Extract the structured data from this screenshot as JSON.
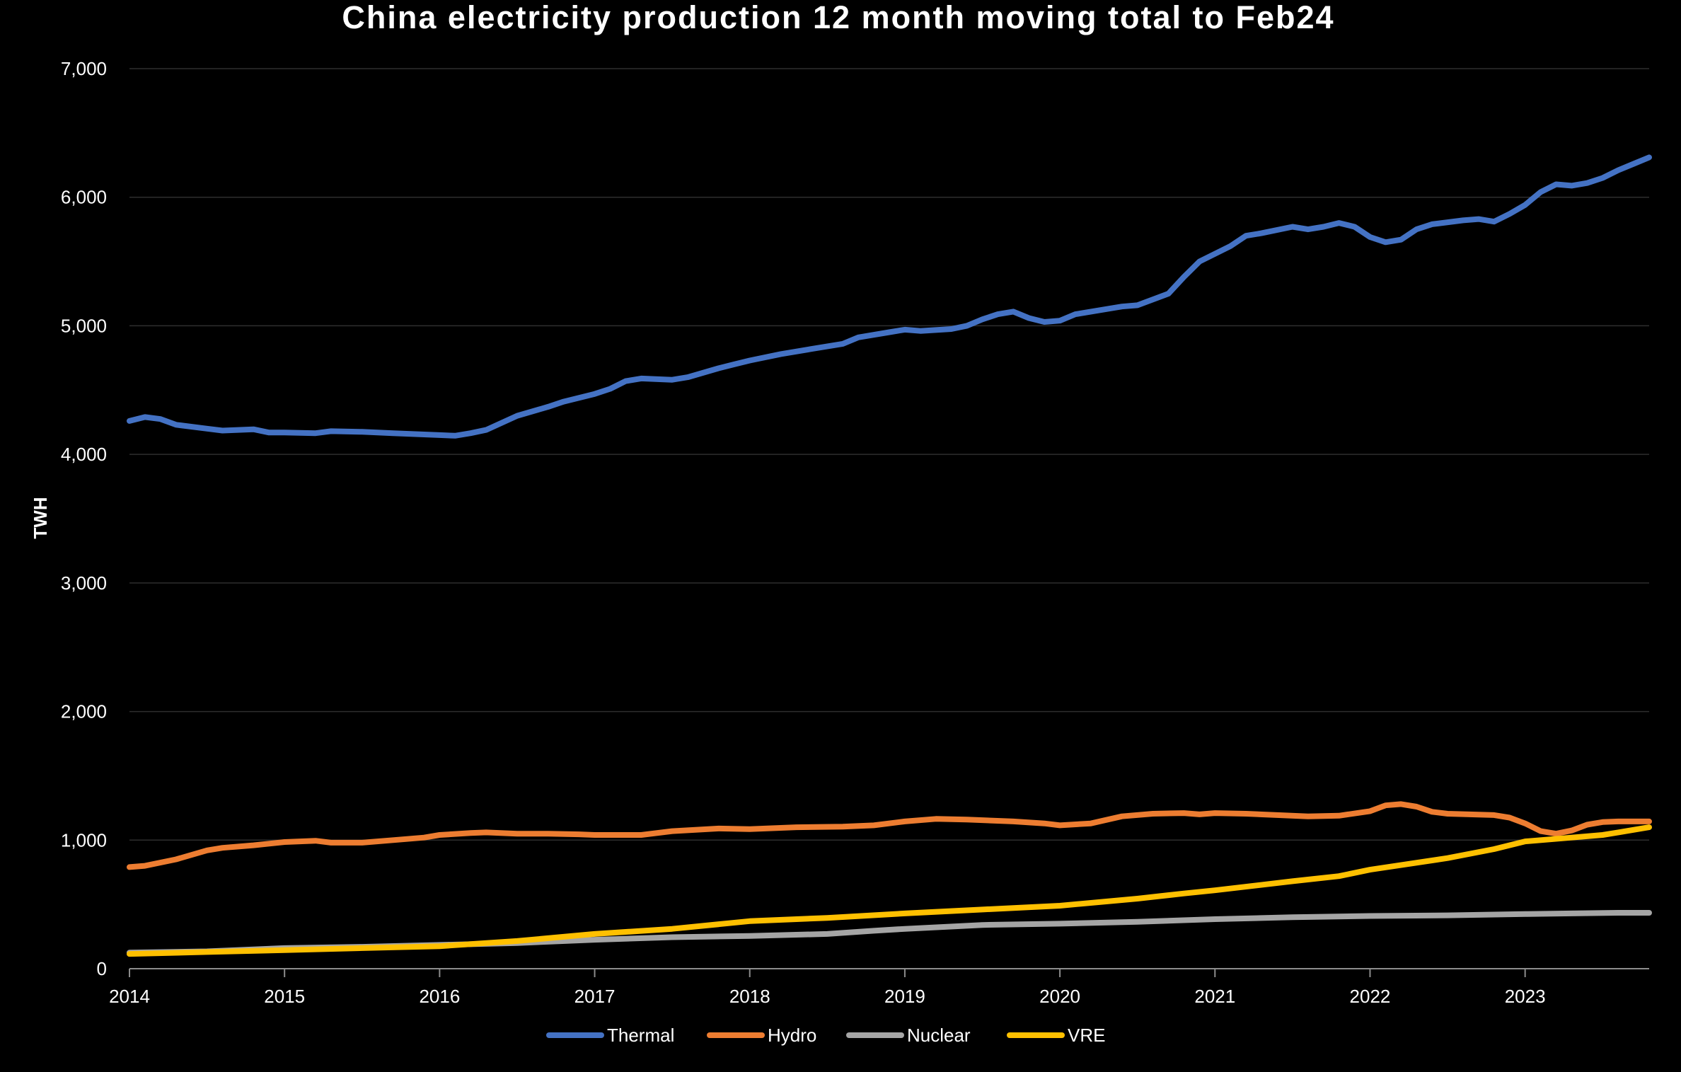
{
  "colors": {
    "background": "#000000",
    "text": "#ffffff",
    "gridline": "#2e2e2e",
    "axis": "#8c8c8c"
  },
  "chart_data": {
    "type": "line",
    "title": "China electricity production 12 month moving total to Feb24",
    "ylabel": "TWH",
    "xlabel": "",
    "xlim": [
      2014,
      2023.8
    ],
    "ylim": [
      0,
      7000
    ],
    "x_ticks": [
      {
        "value": 2014,
        "label": "2014"
      },
      {
        "value": 2015,
        "label": "2015"
      },
      {
        "value": 2016,
        "label": "2016"
      },
      {
        "value": 2017,
        "label": "2017"
      },
      {
        "value": 2018,
        "label": "2018"
      },
      {
        "value": 2019,
        "label": "2019"
      },
      {
        "value": 2020,
        "label": "2020"
      },
      {
        "value": 2021,
        "label": "2021"
      },
      {
        "value": 2022,
        "label": "2022"
      },
      {
        "value": 2023,
        "label": "2023"
      }
    ],
    "y_ticks": [
      {
        "value": 0,
        "label": "0"
      },
      {
        "value": 1000,
        "label": "1,000"
      },
      {
        "value": 2000,
        "label": "2,000"
      },
      {
        "value": 3000,
        "label": "3,000"
      },
      {
        "value": 4000,
        "label": "4,000"
      },
      {
        "value": 5000,
        "label": "5,000"
      },
      {
        "value": 6000,
        "label": "6,000"
      },
      {
        "value": 7000,
        "label": "7,000"
      }
    ],
    "grid": true,
    "legend_position": "bottom",
    "series": [
      {
        "name": "Thermal",
        "color": "#4472C4",
        "points": [
          [
            2014.0,
            4260
          ],
          [
            2014.1,
            4290
          ],
          [
            2014.2,
            4275
          ],
          [
            2014.3,
            4230
          ],
          [
            2014.5,
            4200
          ],
          [
            2014.6,
            4185
          ],
          [
            2014.8,
            4195
          ],
          [
            2014.9,
            4170
          ],
          [
            2015.0,
            4170
          ],
          [
            2015.2,
            4165
          ],
          [
            2015.3,
            4180
          ],
          [
            2015.5,
            4175
          ],
          [
            2015.7,
            4165
          ],
          [
            2015.8,
            4160
          ],
          [
            2016.0,
            4150
          ],
          [
            2016.1,
            4145
          ],
          [
            2016.2,
            4165
          ],
          [
            2016.3,
            4190
          ],
          [
            2016.5,
            4300
          ],
          [
            2016.7,
            4370
          ],
          [
            2016.8,
            4410
          ],
          [
            2017.0,
            4470
          ],
          [
            2017.1,
            4510
          ],
          [
            2017.2,
            4570
          ],
          [
            2017.3,
            4590
          ],
          [
            2017.5,
            4580
          ],
          [
            2017.6,
            4600
          ],
          [
            2017.8,
            4670
          ],
          [
            2017.9,
            4700
          ],
          [
            2018.0,
            4730
          ],
          [
            2018.2,
            4780
          ],
          [
            2018.4,
            4820
          ],
          [
            2018.6,
            4860
          ],
          [
            2018.7,
            4910
          ],
          [
            2018.9,
            4950
          ],
          [
            2019.0,
            4970
          ],
          [
            2019.1,
            4960
          ],
          [
            2019.3,
            4975
          ],
          [
            2019.4,
            5000
          ],
          [
            2019.5,
            5050
          ],
          [
            2019.6,
            5090
          ],
          [
            2019.7,
            5110
          ],
          [
            2019.8,
            5060
          ],
          [
            2019.9,
            5030
          ],
          [
            2020.0,
            5040
          ],
          [
            2020.1,
            5090
          ],
          [
            2020.3,
            5130
          ],
          [
            2020.4,
            5150
          ],
          [
            2020.5,
            5160
          ],
          [
            2020.7,
            5250
          ],
          [
            2020.8,
            5380
          ],
          [
            2020.9,
            5500
          ],
          [
            2021.0,
            5560
          ],
          [
            2021.1,
            5620
          ],
          [
            2021.2,
            5700
          ],
          [
            2021.3,
            5720
          ],
          [
            2021.5,
            5770
          ],
          [
            2021.6,
            5750
          ],
          [
            2021.7,
            5770
          ],
          [
            2021.8,
            5800
          ],
          [
            2021.9,
            5770
          ],
          [
            2022.0,
            5690
          ],
          [
            2022.1,
            5650
          ],
          [
            2022.2,
            5670
          ],
          [
            2022.3,
            5750
          ],
          [
            2022.4,
            5790
          ],
          [
            2022.6,
            5820
          ],
          [
            2022.7,
            5830
          ],
          [
            2022.8,
            5810
          ],
          [
            2022.9,
            5870
          ],
          [
            2023.0,
            5940
          ],
          [
            2023.1,
            6040
          ],
          [
            2023.2,
            6100
          ],
          [
            2023.3,
            6090
          ],
          [
            2023.4,
            6110
          ],
          [
            2023.5,
            6150
          ],
          [
            2023.6,
            6210
          ],
          [
            2023.7,
            6260
          ],
          [
            2023.8,
            6310
          ]
        ]
      },
      {
        "name": "Hydro",
        "color": "#ED7D31",
        "points": [
          [
            2014.0,
            790
          ],
          [
            2014.1,
            800
          ],
          [
            2014.3,
            850
          ],
          [
            2014.5,
            920
          ],
          [
            2014.6,
            940
          ],
          [
            2014.8,
            960
          ],
          [
            2015.0,
            985
          ],
          [
            2015.2,
            995
          ],
          [
            2015.3,
            980
          ],
          [
            2015.5,
            980
          ],
          [
            2015.7,
            1000
          ],
          [
            2015.9,
            1020
          ],
          [
            2016.0,
            1040
          ],
          [
            2016.2,
            1055
          ],
          [
            2016.3,
            1060
          ],
          [
            2016.5,
            1050
          ],
          [
            2016.7,
            1050
          ],
          [
            2016.9,
            1045
          ],
          [
            2017.0,
            1040
          ],
          [
            2017.3,
            1040
          ],
          [
            2017.5,
            1070
          ],
          [
            2017.8,
            1090
          ],
          [
            2018.0,
            1085
          ],
          [
            2018.3,
            1100
          ],
          [
            2018.6,
            1105
          ],
          [
            2018.8,
            1115
          ],
          [
            2019.0,
            1145
          ],
          [
            2019.2,
            1165
          ],
          [
            2019.4,
            1160
          ],
          [
            2019.7,
            1145
          ],
          [
            2019.9,
            1130
          ],
          [
            2020.0,
            1115
          ],
          [
            2020.2,
            1130
          ],
          [
            2020.4,
            1185
          ],
          [
            2020.6,
            1205
          ],
          [
            2020.8,
            1210
          ],
          [
            2020.9,
            1200
          ],
          [
            2021.0,
            1210
          ],
          [
            2021.2,
            1205
          ],
          [
            2021.4,
            1195
          ],
          [
            2021.6,
            1185
          ],
          [
            2021.8,
            1190
          ],
          [
            2022.0,
            1225
          ],
          [
            2022.1,
            1270
          ],
          [
            2022.2,
            1280
          ],
          [
            2022.3,
            1260
          ],
          [
            2022.4,
            1220
          ],
          [
            2022.5,
            1205
          ],
          [
            2022.8,
            1195
          ],
          [
            2022.9,
            1175
          ],
          [
            2023.0,
            1130
          ],
          [
            2023.1,
            1070
          ],
          [
            2023.2,
            1050
          ],
          [
            2023.3,
            1075
          ],
          [
            2023.4,
            1120
          ],
          [
            2023.5,
            1140
          ],
          [
            2023.6,
            1145
          ],
          [
            2023.8,
            1145
          ]
        ]
      },
      {
        "name": "Nuclear",
        "color": "#A5A5A5",
        "points": [
          [
            2014.0,
            125
          ],
          [
            2014.5,
            135
          ],
          [
            2015.0,
            160
          ],
          [
            2015.5,
            170
          ],
          [
            2016.0,
            185
          ],
          [
            2016.5,
            200
          ],
          [
            2017.0,
            225
          ],
          [
            2017.5,
            245
          ],
          [
            2018.0,
            255
          ],
          [
            2018.5,
            270
          ],
          [
            2018.8,
            295
          ],
          [
            2019.0,
            310
          ],
          [
            2019.5,
            340
          ],
          [
            2020.0,
            350
          ],
          [
            2020.5,
            365
          ],
          [
            2021.0,
            385
          ],
          [
            2021.5,
            400
          ],
          [
            2022.0,
            410
          ],
          [
            2022.5,
            415
          ],
          [
            2023.0,
            425
          ],
          [
            2023.3,
            430
          ],
          [
            2023.6,
            435
          ],
          [
            2023.8,
            435
          ]
        ]
      },
      {
        "name": "VRE",
        "color": "#FFC000",
        "points": [
          [
            2014.0,
            115
          ],
          [
            2014.5,
            130
          ],
          [
            2015.0,
            145
          ],
          [
            2015.5,
            160
          ],
          [
            2016.0,
            175
          ],
          [
            2016.5,
            215
          ],
          [
            2017.0,
            270
          ],
          [
            2017.5,
            310
          ],
          [
            2018.0,
            370
          ],
          [
            2018.5,
            395
          ],
          [
            2019.0,
            430
          ],
          [
            2019.5,
            460
          ],
          [
            2020.0,
            490
          ],
          [
            2020.5,
            545
          ],
          [
            2020.8,
            585
          ],
          [
            2021.0,
            610
          ],
          [
            2021.5,
            680
          ],
          [
            2021.8,
            720
          ],
          [
            2022.0,
            770
          ],
          [
            2022.5,
            860
          ],
          [
            2022.8,
            930
          ],
          [
            2023.0,
            990
          ],
          [
            2023.3,
            1020
          ],
          [
            2023.5,
            1040
          ],
          [
            2023.6,
            1060
          ],
          [
            2023.8,
            1100
          ]
        ]
      }
    ]
  }
}
